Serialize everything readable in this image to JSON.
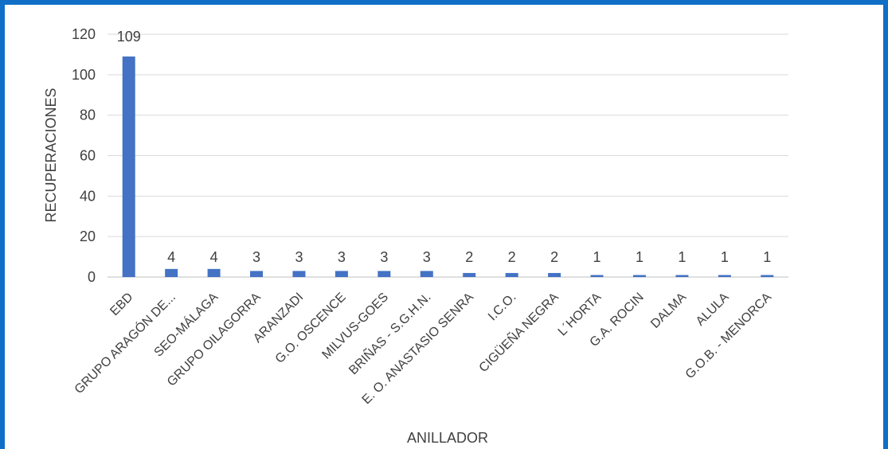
{
  "chart_data": {
    "type": "bar",
    "title": "",
    "xlabel": "ANILLADOR",
    "ylabel": "RECUPERACIONES",
    "ylim": [
      0,
      120
    ],
    "yticks": [
      0,
      20,
      40,
      60,
      80,
      100,
      120
    ],
    "grid": true,
    "legend": "none",
    "bar_color": "#4472c4",
    "frame_color": "#0f6fc6",
    "categories": [
      "EBD",
      "GRUPO ARAGÓN DE...",
      "SEO-MÁLAGA",
      "GRUPO OILAGORRA",
      "ARANZADI",
      "G.O. OSCENCE",
      "MILVUS-GOES",
      "BRIÑAS - S.G.H.N.",
      "E. O. ANASTASIO SENRA",
      "I.C.O.",
      "CIGÜEÑA NEGRA",
      "L´HORTA",
      "G.A. ROCIN",
      "DALMA",
      "ALULA",
      "G.O.B. - MENORCA"
    ],
    "values": [
      109,
      4,
      4,
      3,
      3,
      3,
      3,
      3,
      2,
      2,
      2,
      1,
      1,
      1,
      1,
      1
    ]
  }
}
